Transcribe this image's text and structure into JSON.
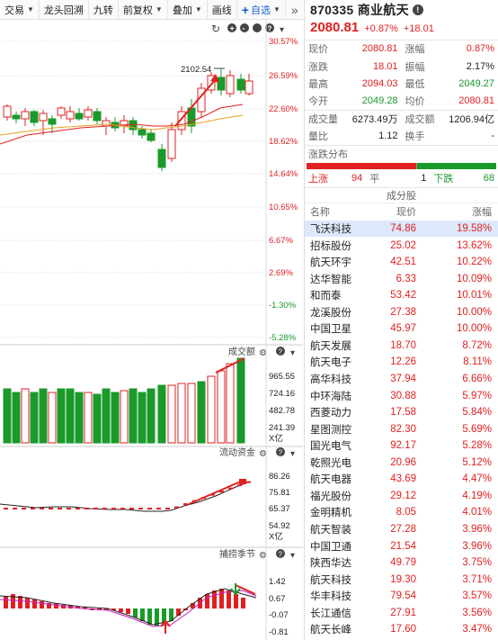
{
  "toolbar": {
    "items": [
      {
        "label": "交易",
        "caret": true
      },
      {
        "label": "龙头回溯",
        "caret": false
      },
      {
        "label": "九转",
        "caret": false
      },
      {
        "label": "前复权",
        "caret": true
      },
      {
        "label": "叠加",
        "caret": true
      },
      {
        "label": "画线",
        "caret": false
      }
    ],
    "add_label": "自选",
    "more": "»"
  },
  "chart": {
    "ytick_labels": [
      "30.57%",
      "26.59%",
      "22.60%",
      "18.62%",
      "14.64%",
      "10.65%",
      "6.67%",
      "2.69%",
      "-1.30%",
      "-5.28%"
    ],
    "annotation": "2102.54",
    "volume": {
      "title": "成交额",
      "ticks": [
        "965.55",
        "724.16",
        "482.78",
        "241.39"
      ],
      "unit": "X亿"
    },
    "flow": {
      "title": "流动资金",
      "ticks": [
        "86.26",
        "75.81",
        "65.37",
        "54.92"
      ],
      "unit": "X亿"
    },
    "season": {
      "title": "捕捞季节",
      "ticks": [
        "1.42",
        "0.67",
        "-0.07",
        "-0.81"
      ]
    },
    "up_color": "#e02020",
    "down_color": "#1a9a2a"
  },
  "quote": {
    "code_name": "870335 商业航天",
    "price": "2080.81",
    "pct": "+0.87%",
    "chg": "+18.01",
    "rows": [
      [
        {
          "l": "现价",
          "v": "2080.81",
          "c": "red"
        },
        {
          "l": "涨幅",
          "v": "0.87%",
          "c": "red"
        }
      ],
      [
        {
          "l": "涨跌",
          "v": "18.01",
          "c": "red"
        },
        {
          "l": "振幅",
          "v": "2.17%",
          "c": "blk"
        }
      ],
      [
        {
          "l": "最高",
          "v": "2094.03",
          "c": "red"
        },
        {
          "l": "最低",
          "v": "2049.27",
          "c": "green"
        }
      ],
      [
        {
          "l": "今开",
          "v": "2049.28",
          "c": "green"
        },
        {
          "l": "均价",
          "v": "2080.81",
          "c": "red"
        }
      ],
      [
        {
          "l": "成交量",
          "v": "6273.49万",
          "c": "blk"
        },
        {
          "l": "成交额",
          "v": "1206.94亿",
          "c": "blk"
        }
      ],
      [
        {
          "l": "量比",
          "v": "1.12",
          "c": "blk"
        },
        {
          "l": "换手",
          "v": "-",
          "c": "blk"
        }
      ]
    ]
  },
  "distribution": {
    "title": "涨跌分布",
    "up_label": "上涨",
    "up": "94",
    "flat_label": "平",
    "flat": "1",
    "down_label": "下跌",
    "down": "68"
  },
  "constituents": {
    "title": "成分股",
    "headers": [
      "名称",
      "现价",
      "涨幅"
    ],
    "rows": [
      [
        "飞沃科技",
        "74.86",
        "19.58%"
      ],
      [
        "招标股份",
        "25.02",
        "13.62%"
      ],
      [
        "航天环宇",
        "42.51",
        "10.22%"
      ],
      [
        "达华智能",
        "6.33",
        "10.09%"
      ],
      [
        "和而泰",
        "53.42",
        "10.01%"
      ],
      [
        "龙溪股份",
        "27.38",
        "10.00%"
      ],
      [
        "中国卫星",
        "45.97",
        "10.00%"
      ],
      [
        "航天发展",
        "18.70",
        "8.72%"
      ],
      [
        "航天电子",
        "12.26",
        "8.11%"
      ],
      [
        "高华科技",
        "37.94",
        "6.66%"
      ],
      [
        "中环海陆",
        "30.88",
        "5.97%"
      ],
      [
        "西菱动力",
        "17.58",
        "5.84%"
      ],
      [
        "星图测控",
        "82.30",
        "5.69%"
      ],
      [
        "国光电气",
        "92.17",
        "5.28%"
      ],
      [
        "乾照光电",
        "20.96",
        "5.12%"
      ],
      [
        "航天电器",
        "43.69",
        "4.47%"
      ],
      [
        "福光股份",
        "29.12",
        "4.19%"
      ],
      [
        "金明精机",
        "8.05",
        "4.01%"
      ],
      [
        "航天智装",
        "27.28",
        "3.96%"
      ],
      [
        "中国卫通",
        "21.54",
        "3.96%"
      ],
      [
        "陕西华达",
        "49.79",
        "3.75%"
      ],
      [
        "航天科技",
        "19.30",
        "3.71%"
      ],
      [
        "华丰科技",
        "79.54",
        "3.57%"
      ],
      [
        "长江通信",
        "27.91",
        "3.56%"
      ],
      [
        "航天长峰",
        "17.60",
        "3.47%"
      ]
    ]
  }
}
